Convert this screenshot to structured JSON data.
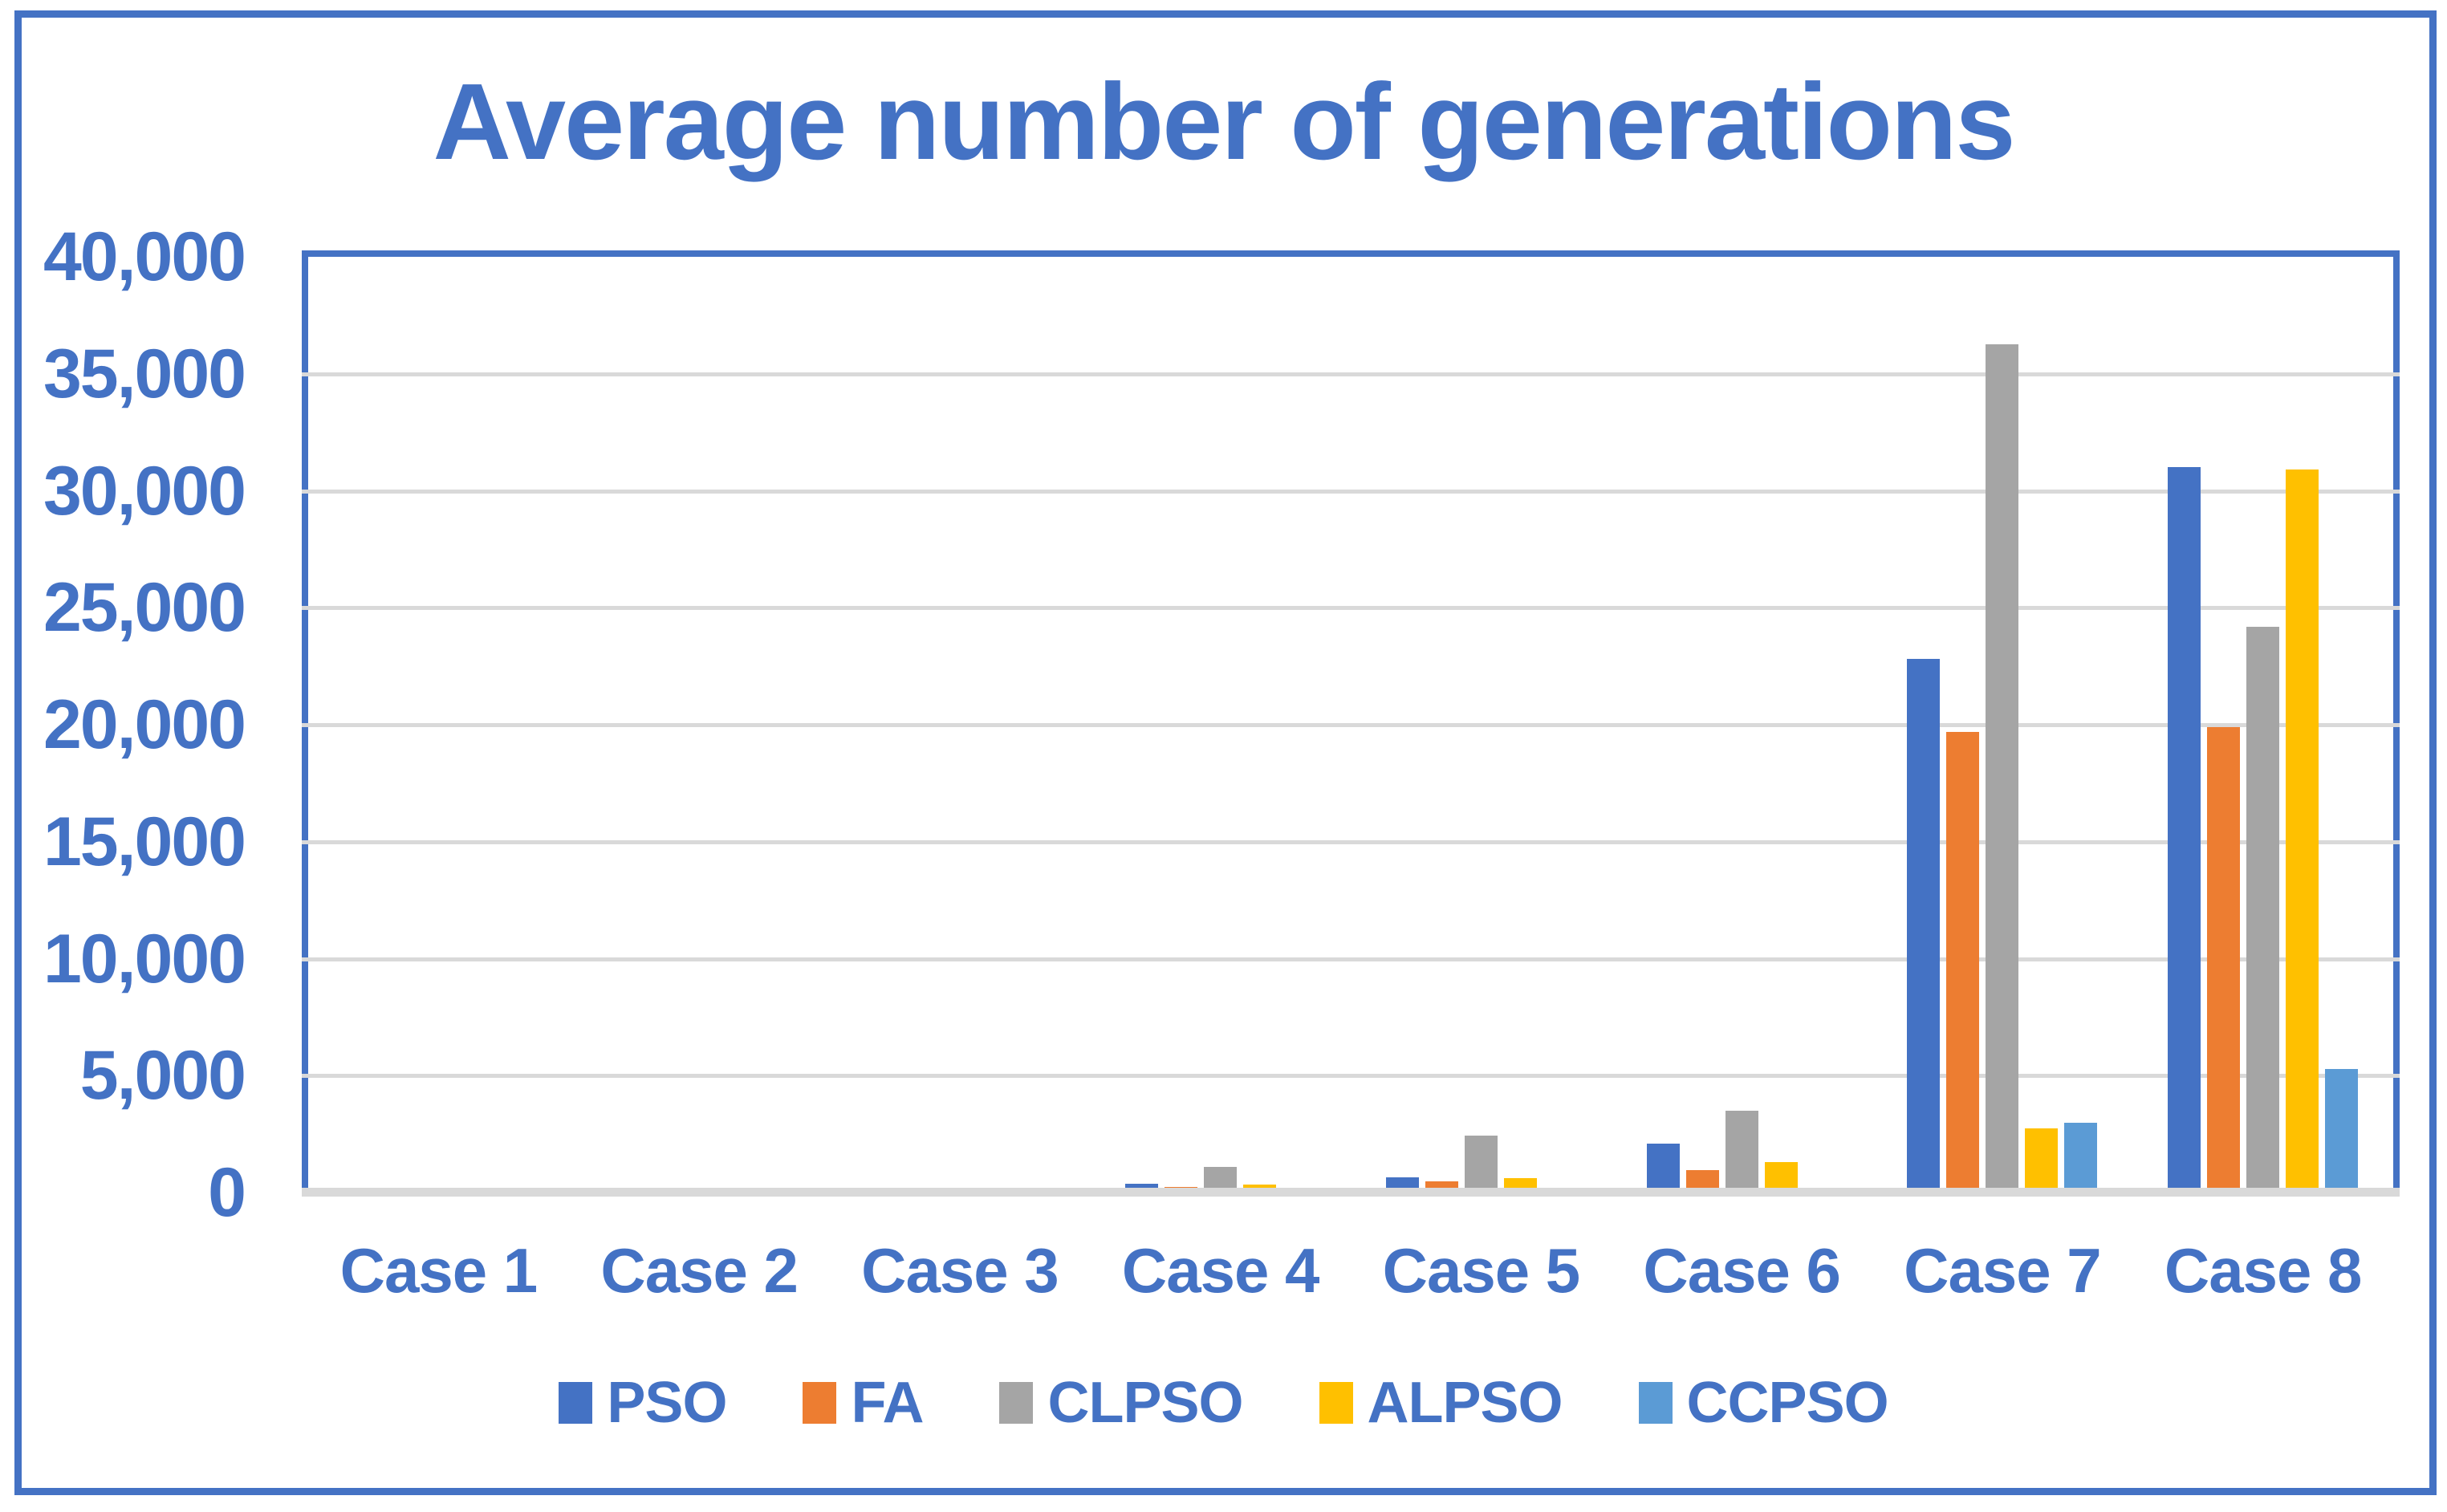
{
  "title": "Average number of generations",
  "colors": {
    "accent_blue": "#4472C4",
    "grid_gray": "#D9D9D9",
    "background": "#ffffff"
  },
  "chart_data": {
    "type": "bar",
    "title": "Average number of generations",
    "categories": [
      "Case 1",
      "Case 2",
      "Case 3",
      "Case 4",
      "Case 5",
      "Case 6",
      "Case 7",
      "Case 8"
    ],
    "series": [
      {
        "name": "PSO",
        "color": "#4472C4",
        "values": [
          0,
          55,
          0,
          370,
          650,
          2080,
          22800,
          31000
        ]
      },
      {
        "name": "FA",
        "color": "#ED7D31",
        "values": [
          0,
          0,
          0,
          230,
          480,
          960,
          19700,
          19900
        ]
      },
      {
        "name": "CLPSO",
        "color": "#A5A5A5",
        "values": [
          0,
          150,
          200,
          1100,
          2450,
          3500,
          36250,
          24200
        ]
      },
      {
        "name": "ALPSO",
        "color": "#FFC000",
        "values": [
          0,
          0,
          60,
          360,
          620,
          1320,
          2750,
          30900
        ]
      },
      {
        "name": "CCPSO",
        "color": "#5B9BD5",
        "values": [
          0,
          0,
          0,
          130,
          140,
          80,
          2970,
          5300
        ]
      }
    ],
    "xlabel": "",
    "ylabel": "",
    "ylim": [
      0,
      40000
    ],
    "ytick_interval": 5000,
    "yticks": [
      {
        "value": 0,
        "label": "0"
      },
      {
        "value": 5000,
        "label": "5,000"
      },
      {
        "value": 10000,
        "label": "10,000"
      },
      {
        "value": 15000,
        "label": "15,000"
      },
      {
        "value": 20000,
        "label": "20,000"
      },
      {
        "value": 25000,
        "label": "25,000"
      },
      {
        "value": 30000,
        "label": "30,000"
      },
      {
        "value": 35000,
        "label": "35,000"
      },
      {
        "value": 40000,
        "label": "40,000"
      }
    ],
    "grid": true,
    "legend_position": "bottom"
  }
}
